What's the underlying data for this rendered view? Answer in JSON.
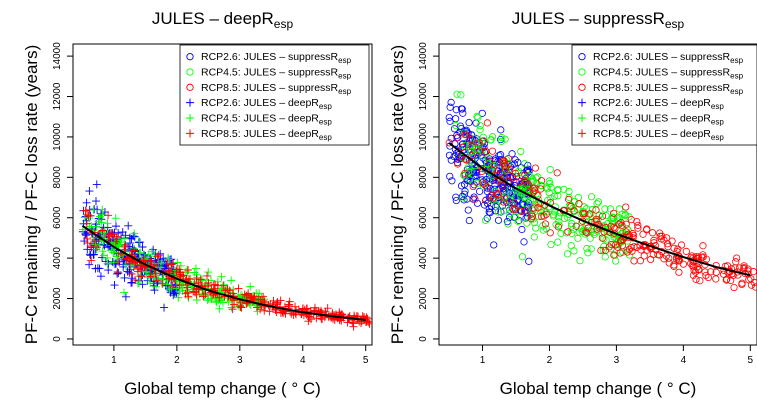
{
  "chart_data": [
    {
      "type": "scatter",
      "title": "JULES – deepR",
      "title_sub": "esp",
      "xlabel": "Global temp change ( ° C)",
      "ylabel": "PF-C remaining / PF-C loss rate (years)",
      "xlim": [
        0.35,
        5.1
      ],
      "ylim": [
        -300,
        14600
      ],
      "xticks": [
        1,
        2,
        3,
        4,
        5
      ],
      "yticks": [
        0,
        2000,
        4000,
        6000,
        8000,
        10000,
        12000,
        14000
      ],
      "grid": false,
      "legend_position": "top-right",
      "legend": [
        {
          "label": "RCP2.6: JULES – suppressR",
          "sub": "esp",
          "marker": "circle",
          "color": "#0000ff"
        },
        {
          "label": "RCP4.5: JULES – suppressR",
          "sub": "esp",
          "marker": "circle",
          "color": "#00ff00"
        },
        {
          "label": "RCP8.5: JULES – suppressR",
          "sub": "esp",
          "marker": "circle",
          "color": "#ff0000"
        },
        {
          "label": "RCP2.6: JULES – deepR",
          "sub": "esp",
          "marker": "plus",
          "color": "#0000ff"
        },
        {
          "label": "RCP4.5: JULES – deepR",
          "sub": "esp",
          "marker": "plus",
          "color": "#00ff00"
        },
        {
          "label": "RCP8.5: JULES – deepR",
          "sub": "esp",
          "marker": "plus",
          "color": "#ff0000"
        }
      ],
      "fit_curve": {
        "x": [
          0.5,
          1.0,
          1.5,
          2.0,
          2.5,
          3.0,
          3.5,
          4.0,
          4.5,
          5.0
        ],
        "y": [
          5600,
          4550,
          3680,
          2980,
          2400,
          1960,
          1600,
          1320,
          1110,
          940
        ]
      },
      "series": [
        {
          "marker": "plus",
          "color": "#0000ff",
          "x_range": [
            0.5,
            2.0
          ],
          "count": 260,
          "noise": 0.15
        },
        {
          "marker": "plus",
          "color": "#00ff00",
          "x_range": [
            0.5,
            3.4
          ],
          "count": 260,
          "noise": 0.14
        },
        {
          "marker": "plus",
          "color": "#ff0000",
          "x_range": [
            0.5,
            5.1
          ],
          "count": 330,
          "noise": 0.13
        }
      ]
    },
    {
      "type": "scatter",
      "title": "JULES – suppressR",
      "title_sub": "esp",
      "xlabel": "Global temp change ( ° C)",
      "ylabel": "PF-C remaining / PF-C loss rate (years)",
      "xlim": [
        0.35,
        5.1
      ],
      "ylim": [
        -300,
        14600
      ],
      "xticks": [
        1,
        2,
        3,
        4,
        5
      ],
      "yticks": [
        0,
        2000,
        4000,
        6000,
        8000,
        10000,
        12000,
        14000
      ],
      "grid": false,
      "legend_position": "top-right",
      "legend": [
        {
          "label": "RCP2.6: JULES – suppressR",
          "sub": "esp",
          "marker": "circle",
          "color": "#0000ff"
        },
        {
          "label": "RCP4.5: JULES – suppressR",
          "sub": "esp",
          "marker": "circle",
          "color": "#00ff00"
        },
        {
          "label": "RCP8.5: JULES – suppressR",
          "sub": "esp",
          "marker": "circle",
          "color": "#ff0000"
        },
        {
          "label": "RCP2.6: JULES – deepR",
          "sub": "esp",
          "marker": "plus",
          "color": "#0000ff"
        },
        {
          "label": "RCP4.5: JULES – deepR",
          "sub": "esp",
          "marker": "plus",
          "color": "#00ff00"
        },
        {
          "label": "RCP8.5: JULES – deepR",
          "sub": "esp",
          "marker": "plus",
          "color": "#ff0000"
        }
      ],
      "fit_curve": {
        "x": [
          0.5,
          1.0,
          1.5,
          2.0,
          2.5,
          3.0,
          3.5,
          4.0,
          4.5,
          5.0
        ],
        "y": [
          9700,
          8450,
          7450,
          6600,
          5850,
          5200,
          4600,
          4050,
          3550,
          3150
        ]
      },
      "series": [
        {
          "marker": "circle",
          "color": "#0000ff",
          "x_range": [
            0.5,
            1.7
          ],
          "count": 300,
          "noise": 0.13
        },
        {
          "marker": "circle",
          "color": "#00ff00",
          "x_range": [
            0.6,
            3.2
          ],
          "count": 280,
          "noise": 0.13
        },
        {
          "marker": "circle",
          "color": "#ff0000",
          "x_range": [
            0.5,
            5.1
          ],
          "count": 280,
          "noise": 0.1
        }
      ]
    }
  ]
}
